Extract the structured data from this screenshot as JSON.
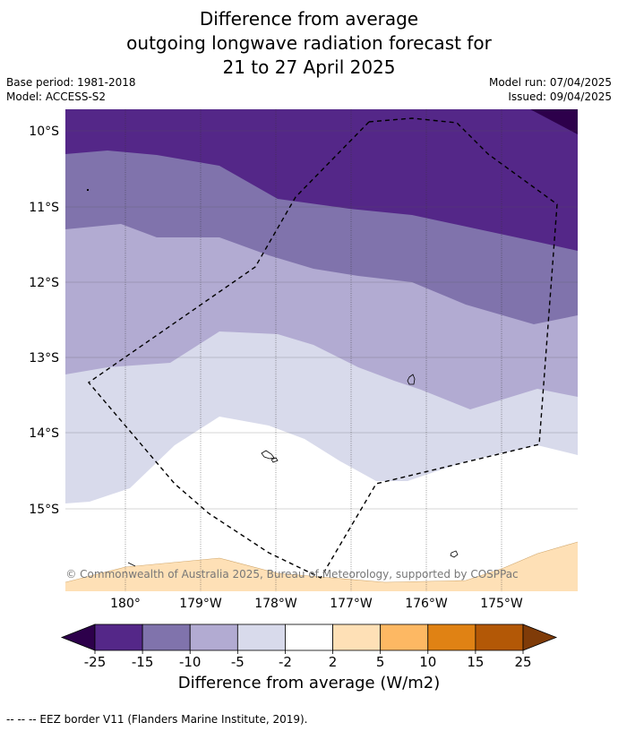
{
  "title": {
    "line1": "Difference from average",
    "line2": "outgoing longwave radiation forecast for",
    "line3": "21 to 27 April 2025"
  },
  "meta": {
    "base_period": "Base period: 1981-2018",
    "model": "Model: ACCESS-S2",
    "model_run": "Model run: 07/04/2025",
    "issued": "Issued: 09/04/2025"
  },
  "map": {
    "lat_labels": [
      "10°S",
      "11°S",
      "12°S",
      "13°S",
      "14°S",
      "15°S"
    ],
    "lon_labels": [
      "180°",
      "179°W",
      "178°W",
      "177°W",
      "176°W",
      "175°W"
    ],
    "copyright": "© Commonwealth of Australia 2025, Bureau of Meteorology, supported by COSPPac"
  },
  "colorbar": {
    "title": "Difference from average (W/m2)",
    "tick_labels": [
      "-25",
      "-15",
      "-10",
      "-5",
      "-2",
      "2",
      "5",
      "10",
      "15",
      "25"
    ],
    "colors": [
      "#2d004b",
      "#542788",
      "#8073ac",
      "#b2abd2",
      "#d8daeb",
      "#ffffff",
      "#fee0b6",
      "#fdb863",
      "#e08214",
      "#b35806",
      "#7f3b08"
    ]
  },
  "footnote": "--  --  -- EEZ border V11 (Flanders Marine Institute, 2019)."
}
